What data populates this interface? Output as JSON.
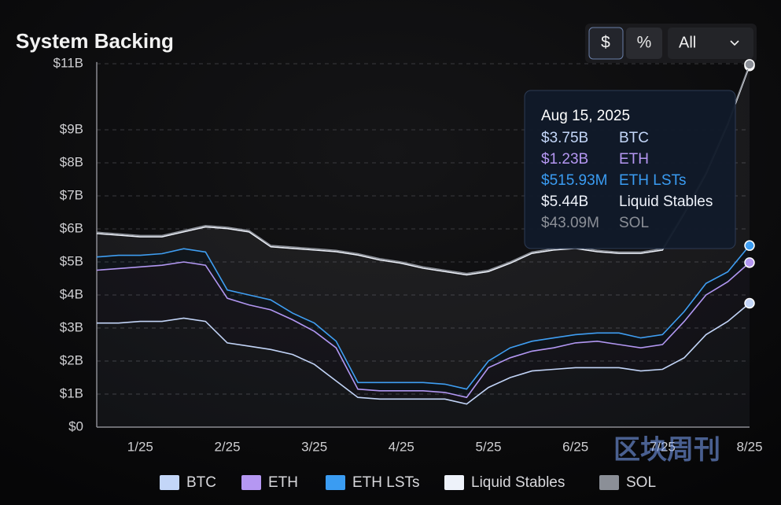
{
  "chart_data": {
    "type": "stacked_area",
    "title": "System Backing",
    "controls": [
      "$",
      "%",
      "All"
    ],
    "watermark": "区块周刊",
    "categories": [
      null,
      null,
      "1/25",
      null,
      null,
      null,
      "2/25",
      null,
      null,
      null,
      "3/25",
      null,
      null,
      null,
      "4/25",
      null,
      null,
      null,
      "5/25",
      null,
      null,
      null,
      "6/25",
      null,
      null,
      null,
      "7/25",
      null,
      null,
      null,
      "8/25"
    ],
    "ylim": [
      0,
      11.05
    ],
    "yticks": [
      {
        "value": 0,
        "label": "$0"
      },
      {
        "value": 1,
        "label": "$1B"
      },
      {
        "value": 2,
        "label": "$2B"
      },
      {
        "value": 3,
        "label": "$3B"
      },
      {
        "value": 4,
        "label": "$4B"
      },
      {
        "value": 5,
        "label": "$5B"
      },
      {
        "value": 6,
        "label": "$6B"
      },
      {
        "value": 7,
        "label": "$7B"
      },
      {
        "value": 8,
        "label": "$8B"
      },
      {
        "value": 9,
        "label": "$9B"
      },
      {
        "value": 11,
        "label": "$11B"
      }
    ],
    "grid": true,
    "legend": "bottom",
    "tooltip": {
      "date": "Aug 15, 2025"
    },
    "series": [
      {
        "name": "BTC",
        "color": "#c3d6f8",
        "values": [
          3.15,
          3.15,
          3.2,
          3.2,
          3.3,
          3.2,
          2.55,
          2.45,
          2.35,
          2.2,
          1.9,
          1.4,
          0.9,
          0.85,
          0.85,
          0.85,
          0.85,
          0.7,
          1.2,
          1.5,
          1.7,
          1.75,
          1.8,
          1.8,
          1.8,
          1.7,
          1.75,
          2.1,
          2.8,
          3.2,
          3.75
        ],
        "value_labels": [
          null,
          null,
          null,
          null,
          null,
          null,
          null,
          null,
          null,
          null,
          null,
          null,
          null,
          null,
          null,
          null,
          null,
          null,
          null,
          null,
          null,
          null,
          null,
          null,
          null,
          null,
          null,
          null,
          null,
          null,
          "$3.75B"
        ]
      },
      {
        "name": "ETH",
        "color": "#b597f2",
        "values": [
          1.6,
          1.65,
          1.65,
          1.7,
          1.7,
          1.7,
          1.35,
          1.25,
          1.2,
          1.05,
          1.0,
          1.0,
          0.25,
          0.25,
          0.25,
          0.25,
          0.2,
          0.2,
          0.6,
          0.6,
          0.6,
          0.65,
          0.75,
          0.8,
          0.7,
          0.7,
          0.75,
          1.1,
          1.2,
          1.2,
          1.23
        ],
        "value_labels": [
          null,
          null,
          null,
          null,
          null,
          null,
          null,
          null,
          null,
          null,
          null,
          null,
          null,
          null,
          null,
          null,
          null,
          null,
          null,
          null,
          null,
          null,
          null,
          null,
          null,
          null,
          null,
          null,
          null,
          null,
          "$1.23B"
        ]
      },
      {
        "name": "ETH LSTs",
        "color": "#3a9cf2",
        "values": [
          0.4,
          0.4,
          0.35,
          0.35,
          0.4,
          0.4,
          0.25,
          0.3,
          0.3,
          0.2,
          0.25,
          0.2,
          0.2,
          0.25,
          0.25,
          0.25,
          0.25,
          0.25,
          0.2,
          0.3,
          0.3,
          0.3,
          0.25,
          0.25,
          0.35,
          0.3,
          0.3,
          0.3,
          0.35,
          0.3,
          0.51593
        ],
        "value_labels": [
          null,
          null,
          null,
          null,
          null,
          null,
          null,
          null,
          null,
          null,
          null,
          null,
          null,
          null,
          null,
          null,
          null,
          null,
          null,
          null,
          null,
          null,
          null,
          null,
          null,
          null,
          null,
          null,
          null,
          null,
          "$515.93M"
        ]
      },
      {
        "name": "Liquid Stables",
        "color": "#eef2fa",
        "values": [
          0.71,
          0.61,
          0.56,
          0.51,
          0.51,
          0.76,
          1.86,
          1.91,
          1.61,
          1.96,
          2.21,
          2.71,
          3.86,
          3.71,
          3.61,
          3.46,
          3.41,
          3.46,
          2.71,
          2.56,
          2.66,
          2.66,
          2.61,
          2.46,
          2.41,
          2.56,
          2.56,
          2.96,
          3.31,
          4.46,
          5.44
        ],
        "value_labels": [
          null,
          null,
          null,
          null,
          null,
          null,
          null,
          null,
          null,
          null,
          null,
          null,
          null,
          null,
          null,
          null,
          null,
          null,
          null,
          null,
          null,
          null,
          null,
          null,
          null,
          null,
          null,
          null,
          null,
          null,
          "$5.44B"
        ]
      },
      {
        "name": "SOL",
        "color": "#8b8f97",
        "values": [
          0.04,
          0.04,
          0.04,
          0.04,
          0.04,
          0.04,
          0.04,
          0.04,
          0.04,
          0.04,
          0.04,
          0.04,
          0.04,
          0.04,
          0.04,
          0.04,
          0.04,
          0.04,
          0.04,
          0.04,
          0.04,
          0.04,
          0.04,
          0.04,
          0.04,
          0.04,
          0.04,
          0.04,
          0.04,
          0.04,
          0.04309
        ],
        "value_labels": [
          null,
          null,
          null,
          null,
          null,
          null,
          null,
          null,
          null,
          null,
          null,
          null,
          null,
          null,
          null,
          null,
          null,
          null,
          null,
          null,
          null,
          null,
          null,
          null,
          null,
          null,
          null,
          null,
          null,
          null,
          "$43.09M"
        ]
      }
    ]
  }
}
